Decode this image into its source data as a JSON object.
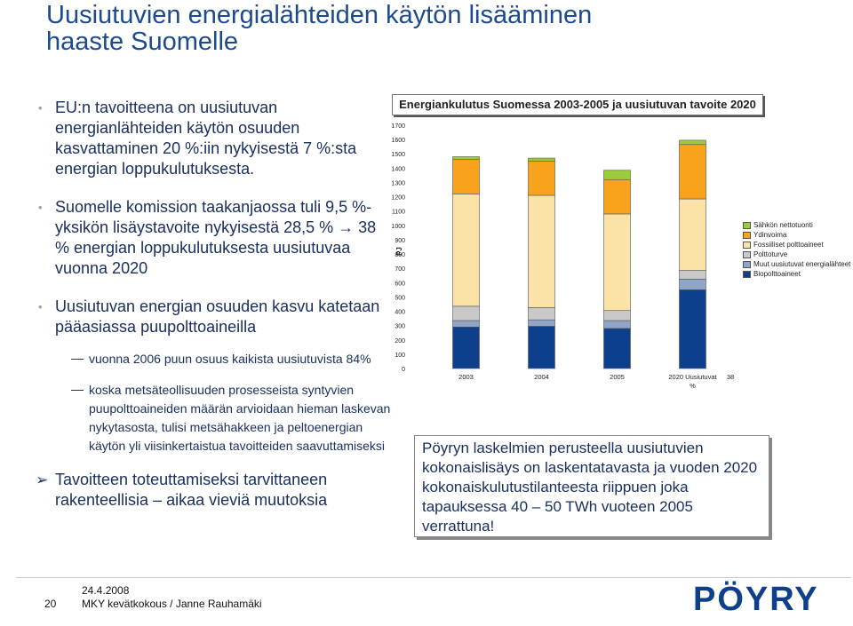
{
  "title": {
    "line1": "Uusiutuvien energialähteiden käytön lisääminen",
    "line2": "haaste Suomelle"
  },
  "bullets": {
    "b1": "EU:n tavoitteena on uusiutuvan energianlähteiden käytön osuuden kasvattaminen 20 %:iin nykyisestä 7 %:sta energian loppukulutuksesta.",
    "b2_a": "Suomelle komission taakanjaossa tuli 9,5 %-yksikön lisäystavoite nykyisestä 28,5 %",
    "b2_arrow": "→",
    "b2_b": "38 % energian loppukulutuksesta uusiutuvaa vuonna 2020",
    "b3": "Uusiutuvan energian osuuden kasvu katetaan pääasiassa puupolttoaineilla",
    "sub1": "vuonna 2006 puun osuus kaikista uusiutuvista 84%",
    "sub2": "koska metsäteollisuuden prosesseista syntyvien puupolttoaineiden määrän arvioidaan hieman laskevan nykytasosta, tulisi metsähakkeen ja peltoenergian käytön yli viisinkertaistua tavoitteiden saavuttamiseksi",
    "b4_arrow": "➢",
    "b4": "Tavoitteen toteuttamiseksi tarvittaneen rakenteellisia – aikaa vieviä muutoksia"
  },
  "textbox": "Pöyryn laskelmien perusteella uusiutuvien kokonaislisäys on laskentatavasta ja vuoden 2020 kokonaiskulutustilanteesta riippuen joka tapauksessa 40 – 50 TWh vuoteen 2005 verrattuna!",
  "footer": {
    "page": "20",
    "date": "24.4.2008",
    "text": "MKY kevätkokous / Janne Rauhamäki",
    "logo": "PÖYRY"
  },
  "chart_data": {
    "type": "bar",
    "stacked": true,
    "title": "Energiankulutus Suomessa 2003-2005 ja uusiutuvan tavoite 2020",
    "ylabel": "PJ",
    "ylim": [
      0,
      1700
    ],
    "yticks": [
      0,
      100,
      200,
      300,
      400,
      500,
      600,
      700,
      800,
      900,
      1000,
      1100,
      1200,
      1300,
      1400,
      1500,
      1600,
      1700
    ],
    "categories": [
      "2003",
      "2004",
      "2005",
      "2020 Uusiutuvat %"
    ],
    "extra_label": "38",
    "series": [
      {
        "name": "Biopolttoaineet",
        "color": "#0e3f8c",
        "values": [
          290,
          295,
          280,
          550
        ]
      },
      {
        "name": "Muut uusiutuvat energialähteet",
        "color": "#8fa6c8",
        "values": [
          45,
          45,
          55,
          75
        ]
      },
      {
        "name": "Polttoturve",
        "color": "#c9c9c9",
        "values": [
          100,
          85,
          70,
          60
        ]
      },
      {
        "name": "Fossiiliset polttoaineet",
        "color": "#fbe2a7",
        "values": [
          785,
          785,
          675,
          500
        ]
      },
      {
        "name": "Ydinvoima",
        "color": "#f8a31b",
        "values": [
          240,
          240,
          240,
          380
        ]
      },
      {
        "name": "Sähkön nettotuonti",
        "color": "#9ccc3c",
        "values": [
          20,
          20,
          65,
          30
        ]
      }
    ],
    "legend": "right"
  }
}
